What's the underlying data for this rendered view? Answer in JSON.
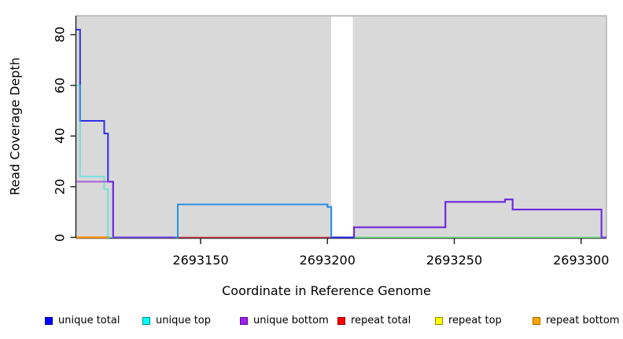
{
  "figure": {
    "xlabel": "Coordinate in Reference Genome",
    "ylabel": "Read Coverage Depth"
  },
  "chart_data": {
    "type": "line",
    "step": true,
    "title": "",
    "xlabel": "Coordinate in Reference Genome",
    "ylabel": "Read Coverage Depth",
    "xlim": [
      2693101,
      2693310
    ],
    "ylim": [
      0,
      87.5
    ],
    "grid": false,
    "legend_position": "bottom",
    "plot_background": "#D9D9D9",
    "plot_border": "#A6A6A6",
    "no_data_region": [
      2693201.5,
      2693210
    ],
    "xtick_values": [
      2693150,
      2693200,
      2693250,
      2693300
    ],
    "xtick_labels": [
      "2693150",
      "2693200",
      "2693250",
      "2693300"
    ],
    "ytick_values": [
      0,
      20,
      40,
      60,
      80
    ],
    "ytick_labels": [
      "0",
      "20",
      "40",
      "60",
      "80"
    ],
    "series": [
      {
        "name": "repeat total",
        "color": "#D04050",
        "width": 1.6,
        "segments": [
          [
            [
              2693140,
              0
            ],
            [
              2693202,
              0
            ]
          ]
        ]
      },
      {
        "name": "repeat top",
        "color": "#E6E600",
        "width": 1.6,
        "segments": [
          [
            [
              2693210.5,
              0
            ],
            [
              2693310,
              0
            ]
          ]
        ]
      },
      {
        "name": "repeat bottom",
        "color": "#FF9414",
        "width": 2.4,
        "segments": [
          [
            [
              2693101,
              0
            ],
            [
              2693114,
              0
            ]
          ]
        ]
      },
      {
        "name": "unique total",
        "color": "#2E2EE6",
        "width": 2,
        "segments": [
          [
            [
              2693101,
              82
            ],
            [
              2693102.5,
              82
            ],
            [
              2693102.5,
              46
            ],
            [
              2693112,
              46
            ],
            [
              2693112,
              41
            ],
            [
              2693113.5,
              41
            ],
            [
              2693113.5,
              22
            ],
            [
              2693115.5,
              22
            ],
            [
              2693115.5,
              0
            ],
            [
              2693141,
              0
            ],
            [
              2693141,
              13
            ],
            [
              2693200,
              13
            ],
            [
              2693200,
              12
            ],
            [
              2693201.5,
              12
            ],
            [
              2693201.5,
              0
            ],
            [
              2693210.5,
              0
            ],
            [
              2693210.5,
              4
            ],
            [
              2693246.5,
              4
            ],
            [
              2693246.5,
              14
            ],
            [
              2693270,
              14
            ],
            [
              2693270,
              15
            ],
            [
              2693273,
              15
            ],
            [
              2693273,
              11
            ],
            [
              2693308,
              11
            ],
            [
              2693308,
              0
            ],
            [
              2693310,
              0
            ]
          ]
        ]
      },
      {
        "name": "unique top",
        "color": "rgba(40,225,225,0.55)",
        "width": 2,
        "segments": [
          [
            [
              2693101,
              60
            ],
            [
              2693102.5,
              60
            ],
            [
              2693102.5,
              24
            ],
            [
              2693112,
              24
            ],
            [
              2693112,
              19
            ],
            [
              2693113.5,
              19
            ],
            [
              2693113.5,
              0
            ],
            [
              2693141,
              0
            ],
            [
              2693141,
              13
            ],
            [
              2693200,
              13
            ],
            [
              2693200,
              12
            ],
            [
              2693201.5,
              12
            ],
            [
              2693201.5,
              0
            ]
          ],
          [
            [
              2693210.5,
              0
            ],
            [
              2693310,
              0
            ]
          ]
        ]
      },
      {
        "name": "unique bottom",
        "color": "rgba(150,40,215,0.62)",
        "width": 2.2,
        "segments": [
          [
            [
              2693101,
              22
            ],
            [
              2693115.5,
              22
            ],
            [
              2693115.5,
              0
            ],
            [
              2693140,
              0
            ]
          ],
          [
            [
              2693210.5,
              0
            ],
            [
              2693210.5,
              4
            ],
            [
              2693246.5,
              4
            ],
            [
              2693246.5,
              14
            ],
            [
              2693270,
              14
            ],
            [
              2693270,
              15
            ],
            [
              2693273,
              15
            ],
            [
              2693273,
              11
            ],
            [
              2693308,
              11
            ],
            [
              2693308,
              0
            ],
            [
              2693310,
              0
            ]
          ]
        ]
      }
    ],
    "legend": [
      {
        "label": "unique total",
        "fill": "#0000FF",
        "border": "#000099"
      },
      {
        "label": "unique top",
        "fill": "#00FFFF",
        "border": "#008B8B"
      },
      {
        "label": "unique bottom",
        "fill": "#A020F0",
        "border": "#58108B"
      },
      {
        "label": "repeat total",
        "fill": "#FF0000",
        "border": "#8B0000"
      },
      {
        "label": "repeat top",
        "fill": "#FFFF00",
        "border": "#8B8B00"
      },
      {
        "label": "repeat bottom",
        "fill": "#FFA500",
        "border": "#A66A00"
      }
    ]
  }
}
